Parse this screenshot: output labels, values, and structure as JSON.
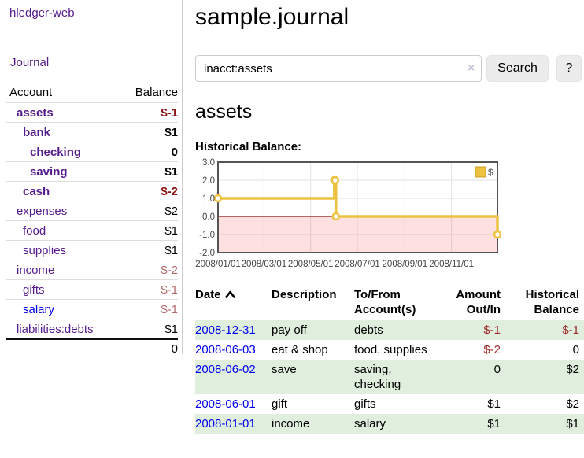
{
  "app_title": "hledger-web",
  "colors": {
    "purple_link": "#551a8b",
    "blue_link": "#0000ee",
    "neg_strong": "#8b1212",
    "neg_soft": "#b36a6a",
    "neg_table": "#9e2a2a",
    "row_stripe_green": "#dfeedd",
    "chart_line_gold": "#edc240"
  },
  "sidebar": {
    "journal_link": "Journal",
    "accounts": {
      "header_account": "Account",
      "header_balance": "Balance",
      "rows": [
        {
          "name": "assets",
          "balance": "$-1",
          "level": 1,
          "bold": true,
          "name_color": "purple",
          "balance_color": "neg-strong"
        },
        {
          "name": "bank",
          "balance": "$1",
          "level": 2,
          "bold": true,
          "name_color": "purple",
          "balance_color": "normal"
        },
        {
          "name": "checking",
          "balance": "0",
          "level": 3,
          "bold": true,
          "name_color": "purple",
          "balance_color": "normal"
        },
        {
          "name": "saving",
          "balance": "$1",
          "level": 3,
          "bold": true,
          "name_color": "purple",
          "balance_color": "normal"
        },
        {
          "name": "cash",
          "balance": "$-2",
          "level": 2,
          "bold": true,
          "name_color": "purple",
          "balance_color": "neg-strong"
        },
        {
          "name": "expenses",
          "balance": "$2",
          "level": 1,
          "bold": false,
          "name_color": "purple",
          "balance_color": "normal"
        },
        {
          "name": "food",
          "balance": "$1",
          "level": 2,
          "bold": false,
          "name_color": "purple",
          "balance_color": "normal"
        },
        {
          "name": "supplies",
          "balance": "$1",
          "level": 2,
          "bold": false,
          "name_color": "purple",
          "balance_color": "normal"
        },
        {
          "name": "income",
          "balance": "$-2",
          "level": 1,
          "bold": false,
          "name_color": "purple",
          "balance_color": "neg-soft"
        },
        {
          "name": "gifts",
          "balance": "$-1",
          "level": 2,
          "bold": false,
          "name_color": "purple",
          "balance_color": "neg-soft"
        },
        {
          "name": "salary",
          "balance": "$-1",
          "level": 2,
          "bold": false,
          "name_color": "blue",
          "balance_color": "neg-soft"
        },
        {
          "name": "liabilities:debts",
          "balance": "$1",
          "level": 1,
          "bold": false,
          "name_color": "purple",
          "balance_color": "normal"
        }
      ],
      "total": "0"
    }
  },
  "main": {
    "title": "sample.journal",
    "search": {
      "value": "inacct:assets",
      "clear_icon": "×",
      "search_button": "Search",
      "help_button": "?"
    },
    "account_heading": "assets",
    "section_label": "Historical Balance:"
  },
  "chart_data": {
    "type": "line",
    "step": true,
    "title": "Historical Balance",
    "legend": [
      {
        "label": "$",
        "color": "#edc240"
      }
    ],
    "legend_position": "top-right",
    "xlim": [
      "2008-01-01",
      "2008-12-31"
    ],
    "ylim": [
      -2,
      3
    ],
    "y_ticks": [
      {
        "value": 3,
        "label": "3.0"
      },
      {
        "value": 2,
        "label": "2.0"
      },
      {
        "value": 1,
        "label": "1.0"
      },
      {
        "value": 0,
        "label": "0.0"
      },
      {
        "value": -1,
        "label": "-1.0"
      },
      {
        "value": -2,
        "label": "-2.0"
      }
    ],
    "x_ticks": [
      {
        "date": "2008-01-01",
        "label": "2008/01/01"
      },
      {
        "date": "2008-03-01",
        "label": "2008/03/01"
      },
      {
        "date": "2008-05-01",
        "label": "2008/05/01"
      },
      {
        "date": "2008-07-01",
        "label": "2008/07/01"
      },
      {
        "date": "2008-09-01",
        "label": "2008/09/01"
      },
      {
        "date": "2008-11-01",
        "label": "2008/11/01"
      }
    ],
    "series": [
      {
        "name": "$",
        "color": "#edc240",
        "points": [
          [
            "2008-01-01",
            1
          ],
          [
            "2008-06-01",
            2
          ],
          [
            "2008-06-02",
            2
          ],
          [
            "2008-06-03",
            0
          ],
          [
            "2008-12-31",
            -1
          ]
        ]
      }
    ],
    "grid": true,
    "negative_region_fill": "#ff0000",
    "negative_region_opacity": 0.12,
    "zero_line_color": "#8b1a1a",
    "plot_border_color": "#545454"
  },
  "register": {
    "headers": {
      "date": "Date",
      "description": "Description",
      "accounts": "To/From\nAccount(s)",
      "amount": "Amount\nOut/In",
      "balance": "Historical\nBalance"
    },
    "rows": [
      {
        "date": "2008-12-31",
        "description": "pay off",
        "accounts": "debts",
        "amount": "$-1",
        "amount_neg": true,
        "balance": "$-1",
        "balance_neg": true
      },
      {
        "date": "2008-06-03",
        "description": "eat & shop",
        "accounts": "food, supplies",
        "amount": "$-2",
        "amount_neg": true,
        "balance": "0",
        "balance_neg": false
      },
      {
        "date": "2008-06-02",
        "description": "save",
        "accounts": "saving,\nchecking",
        "amount": "0",
        "amount_neg": false,
        "balance": "$2",
        "balance_neg": false
      },
      {
        "date": "2008-06-01",
        "description": "gift",
        "accounts": "gifts",
        "amount": "$1",
        "amount_neg": false,
        "balance": "$2",
        "balance_neg": false
      },
      {
        "date": "2008-01-01",
        "description": "income",
        "accounts": "salary",
        "amount": "$1",
        "amount_neg": false,
        "balance": "$1",
        "balance_neg": false
      }
    ]
  }
}
